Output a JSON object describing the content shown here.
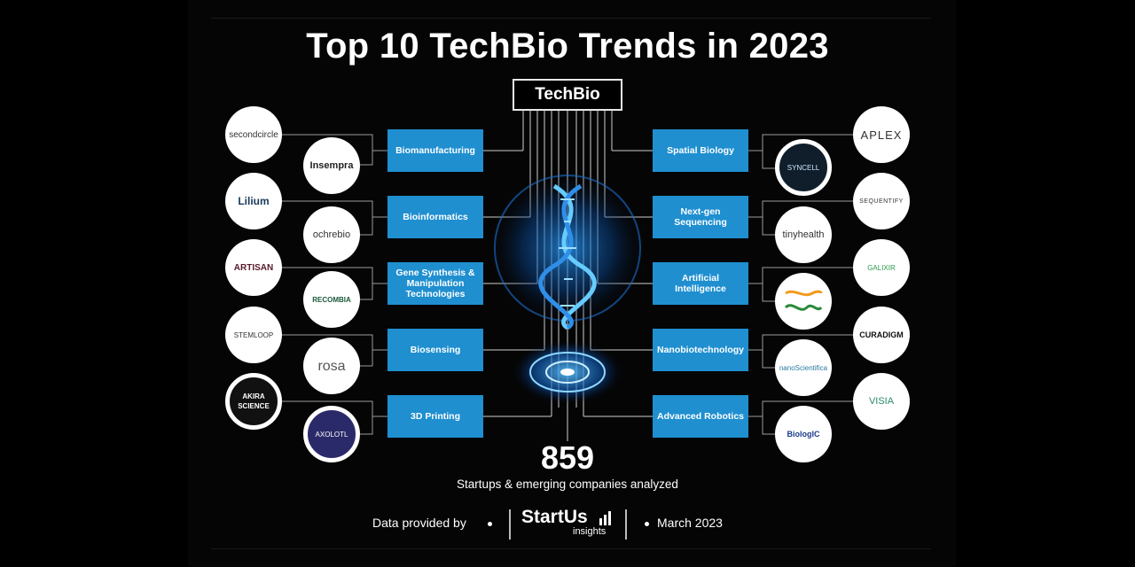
{
  "title": "Top 10 TechBio Trends in 2023",
  "center_label": "TechBio",
  "trends_left": [
    "Biomanufacturing",
    "Bioinformatics",
    "Gene Synthesis & Manipulation Technologies",
    "Biosensing",
    "3D Printing"
  ],
  "trends_right": [
    "Spatial Biology",
    "Next-gen Sequencing",
    "Artificial Intelligence",
    "Nanobiotechnology",
    "Advanced Robotics"
  ],
  "logos_left_outer": [
    "secondcircle",
    "Lilium",
    "ARTISAN",
    "STEMLOOP",
    "AKIRA SCIENCE"
  ],
  "logos_left_inner": [
    "Insempra",
    "ochrebio",
    "RECOMBIA",
    "rosa",
    "AXOLOTL"
  ],
  "logos_right_inner": [
    "SYNCELL",
    "tinyhealth",
    "",
    "nanoScientifica",
    "BiologIC"
  ],
  "logos_right_outer": [
    "APLEX",
    "SEQUENTIFY",
    "GALIXIR",
    "CURADIGM",
    "VISIA"
  ],
  "stat_number": "859",
  "stat_caption": "Startups & emerging companies analyzed",
  "footer": {
    "data_provided_by": "Data provided by",
    "brand": "StartUs",
    "brand_sub": "insights",
    "date": "March 2023"
  },
  "colors": {
    "trend_box": "#1f8fd0",
    "background": "#000000",
    "helix_glow": "#1e90ff"
  }
}
